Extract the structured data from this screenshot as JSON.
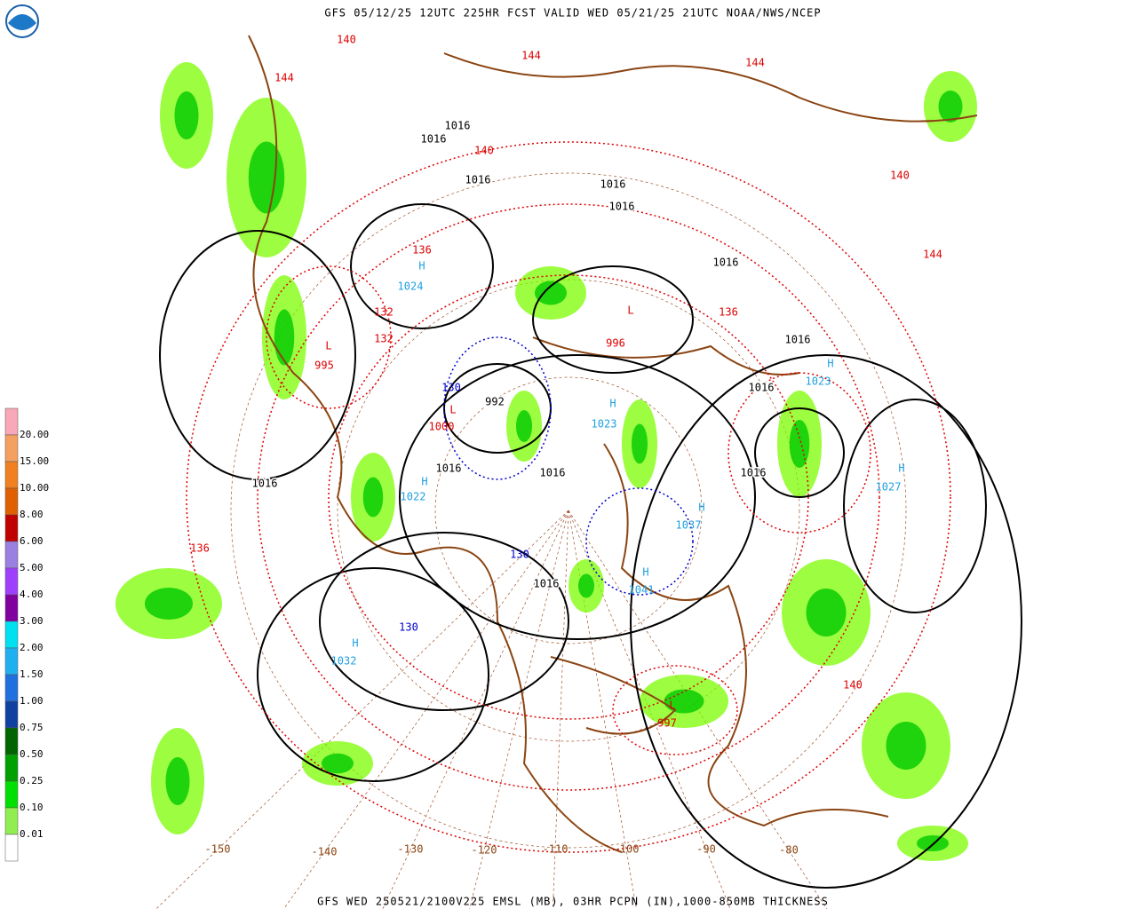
{
  "header": {
    "title": "GFS 05/12/25 12UTC 225HR FCST VALID WED 05/21/25 21UTC NOAA/NWS/NCEP"
  },
  "footer": {
    "text": "GFS WED 250521/2100V225 EMSL (MB), 03HR PCPN (IN),1000-850MB THICKNESS"
  },
  "legend": {
    "labels": [
      "20.00",
      "15.00",
      "10.00",
      "8.00",
      "6.00",
      "5.00",
      "4.00",
      "3.00",
      "2.00",
      "1.50",
      "1.00",
      "0.75",
      "0.50",
      "0.25",
      "0.10",
      "0.01"
    ]
  },
  "longitudes": [
    -150,
    -140,
    -130,
    -120,
    -110,
    -100,
    -90,
    -80
  ],
  "centers": [
    {
      "symbol": "H",
      "pressure": 1024
    },
    {
      "symbol": "L",
      "pressure": 995
    },
    {
      "symbol": "L",
      "pressure": 1000
    },
    {
      "symbol": "L",
      "pressure": 996
    },
    {
      "symbol": "L",
      "pressure": 997
    },
    {
      "symbol": "H",
      "pressure": 1023
    },
    {
      "symbol": "H",
      "pressure": 1027
    },
    {
      "symbol": "H",
      "pressure": 1032
    },
    {
      "symbol": "H",
      "pressure": 1022
    },
    {
      "symbol": "H",
      "pressure": 1023
    },
    {
      "symbol": "H",
      "pressure": 1037
    },
    {
      "symbol": "H",
      "pressure": 1041
    }
  ],
  "isobar_labels": [
    1016,
    1016,
    1016,
    1016,
    1016,
    1016,
    1016,
    1016,
    1016,
    1016,
    1016,
    1016,
    992,
    1016
  ],
  "thickness_labels": [
    140,
    144,
    144,
    140,
    136,
    132,
    132,
    136,
    140,
    144,
    140,
    144,
    136,
    130,
    130,
    130
  ]
}
